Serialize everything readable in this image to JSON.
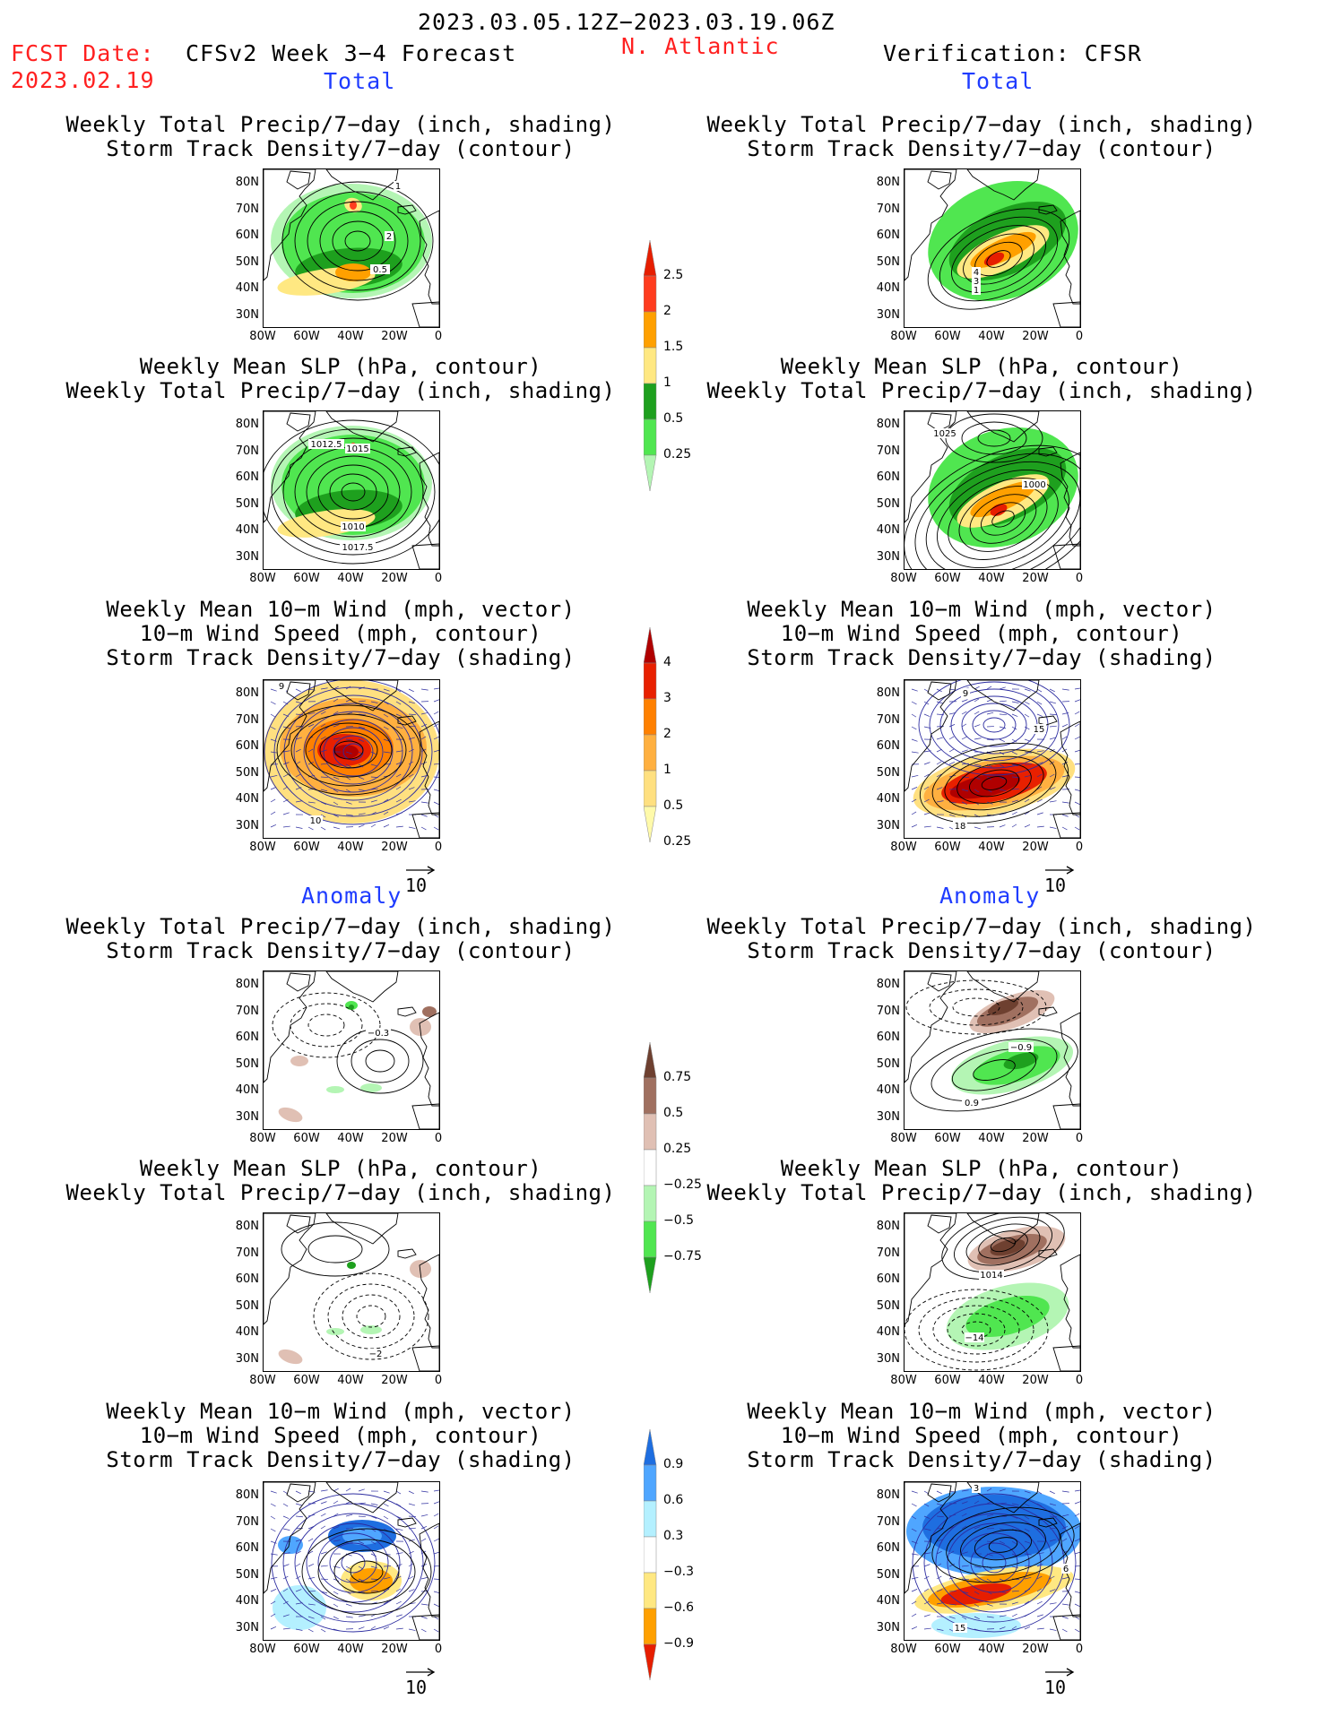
{
  "header": {
    "date_range": "2023.03.05.12Z−2023.03.19.06Z",
    "fcst_label": "FCST Date:",
    "fcst_date": "2023.02.19",
    "model": "CFSv2 Week 3−4 Forecast",
    "region": "N. Atlantic",
    "verification": "Verification: CFSR"
  },
  "sections": {
    "total": "Total",
    "anomaly": "Anomaly"
  },
  "titles": {
    "precip_storm": "Weekly Total Precip/7−day (inch, shading)\nStorm Track Density/7−day (contour)",
    "slp_precip": "Weekly Mean SLP (hPa, contour)\nWeekly Total Precip/7−day (inch, shading)",
    "wind_storm": "Weekly Mean 10−m Wind (mph, vector)\n10−m Wind Speed (mph, contour)\nStorm Track Density/7−day (shading)"
  },
  "axes": {
    "lat": [
      "80N",
      "70N",
      "60N",
      "50N",
      "40N",
      "30N"
    ],
    "lon": [
      "80W",
      "60W",
      "40W",
      "20W",
      "0"
    ]
  },
  "vector_ref": "10",
  "colorbars": {
    "total_precip": [
      "2.5",
      "2",
      "1.5",
      "1",
      "0.5",
      "0.25"
    ],
    "total_storm": [
      "4",
      "3",
      "2",
      "1",
      "0.5",
      "0.25"
    ],
    "anom_precip": [
      "0.75",
      "0.5",
      "0.25",
      "−0.25",
      "−0.5",
      "−0.75"
    ],
    "anom_storm": [
      "0.9",
      "0.6",
      "0.3",
      "−0.3",
      "−0.6",
      "−0.9"
    ]
  },
  "contour_labels": {
    "fcst_total_precip": [
      "1",
      "2",
      "0.5"
    ],
    "fcst_total_slp": [
      "1012.5",
      "1015",
      "1010",
      "1017.5"
    ],
    "fcst_total_wind": [
      "9",
      "10"
    ],
    "ver_total_precip": [
      "4",
      "3",
      "1"
    ],
    "ver_total_slp": [
      "1025",
      "1000"
    ],
    "ver_total_wind": [
      "9",
      "15",
      "18"
    ],
    "fcst_anom_precip": [
      "−0.3"
    ],
    "fcst_anom_slp": [
      "−2"
    ],
    "ver_anom_precip": [
      "−0.9",
      "0.9"
    ],
    "ver_anom_slp": [
      "1014",
      "−14"
    ],
    "ver_anom_wind": [
      "3",
      "6",
      "15"
    ]
  },
  "colors": {
    "precip": [
      "#b4f5b4",
      "#50e650",
      "#1ea01e",
      "#ffe882",
      "#ffa000",
      "#ff3c1e",
      "#e61e00"
    ],
    "storm": [
      "#fffaaa",
      "#ffe080",
      "#ffb040",
      "#ff8000",
      "#e82000",
      "#b00000"
    ],
    "anom_precip": [
      "#1ea01e",
      "#50e650",
      "#b4f5b4",
      "#ffffff",
      "#e0c0b4",
      "#a07060",
      "#6e4030"
    ],
    "anom_storm": [
      "#e61e00",
      "#ffa000",
      "#ffe882",
      "#ffffff",
      "#b4f0ff",
      "#4fa6ff",
      "#1e6ee0"
    ]
  }
}
